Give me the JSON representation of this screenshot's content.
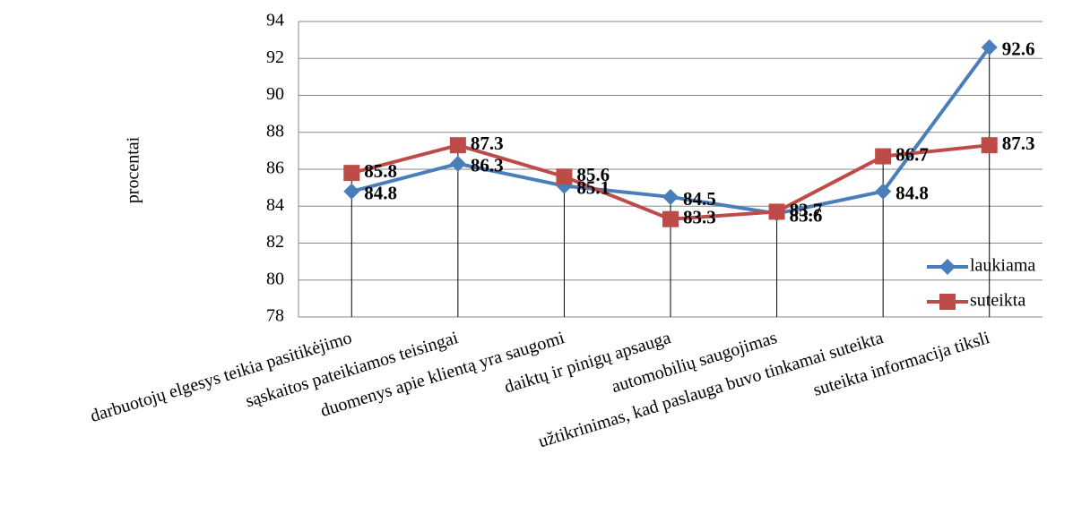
{
  "chart_data": {
    "type": "line",
    "y_label": "procentai",
    "categories": [
      "darbuotojų elgesys teikia pasitikėjimo",
      "sąskaitos pateikiamos teisingai",
      "duomenys apie klientą yra saugomi",
      "daiktų ir pinigų apsauga",
      "automobilių saugojimas",
      "užtikrinimas, kad paslauga buvo tinkamai suteikta",
      "suteikta informacija tiksli"
    ],
    "series": [
      {
        "name": "laukiama",
        "color": "#4a7ebb",
        "marker": "diamond",
        "values": [
          84.8,
          86.3,
          85.1,
          84.5,
          83.6,
          84.8,
          92.6
        ]
      },
      {
        "name": "suteikta",
        "color": "#be4b48",
        "marker": "square",
        "values": [
          85.8,
          87.3,
          85.6,
          83.3,
          83.7,
          86.7,
          87.3
        ]
      }
    ],
    "ylim": [
      78,
      94
    ],
    "yticks": [
      78,
      80,
      82,
      84,
      86,
      88,
      90,
      92,
      94
    ],
    "grid": true,
    "drop_lines": true,
    "legend": "right"
  }
}
